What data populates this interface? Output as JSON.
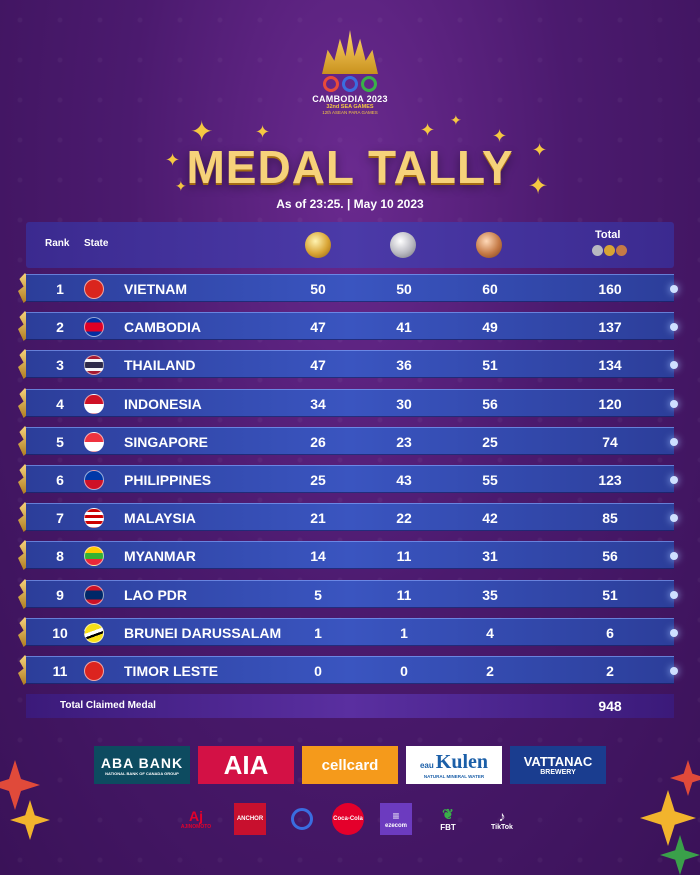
{
  "logo": {
    "title": "CAMBODIA 2023",
    "subtitle": "32nd SEA GAMES",
    "subtitle2": "12th ASEAN PARA GAMES"
  },
  "title": "MEDAL TALLY",
  "as_of": "As of 23:25. | May 10 2023",
  "headers": {
    "rank": "Rank",
    "state": "State",
    "total": "Total"
  },
  "rows": [
    {
      "rank": "1",
      "state": "VIETNAM",
      "gold": "50",
      "silver": "50",
      "bronze": "60",
      "total": "160"
    },
    {
      "rank": "2",
      "state": "CAMBODIA",
      "gold": "47",
      "silver": "41",
      "bronze": "49",
      "total": "137"
    },
    {
      "rank": "3",
      "state": "THAILAND",
      "gold": "47",
      "silver": "36",
      "bronze": "51",
      "total": "134"
    },
    {
      "rank": "4",
      "state": "INDONESIA",
      "gold": "34",
      "silver": "30",
      "bronze": "56",
      "total": "120"
    },
    {
      "rank": "5",
      "state": "SINGAPORE",
      "gold": "26",
      "silver": "23",
      "bronze": "25",
      "total": "74"
    },
    {
      "rank": "6",
      "state": "PHILIPPINES",
      "gold": "25",
      "silver": "43",
      "bronze": "55",
      "total": "123"
    },
    {
      "rank": "7",
      "state": "MALAYSIA",
      "gold": "21",
      "silver": "22",
      "bronze": "42",
      "total": "85"
    },
    {
      "rank": "8",
      "state": "MYANMAR",
      "gold": "14",
      "silver": "11",
      "bronze": "31",
      "total": "56"
    },
    {
      "rank": "9",
      "state": "LAO PDR",
      "gold": "5",
      "silver": "11",
      "bronze": "35",
      "total": "51"
    },
    {
      "rank": "10",
      "state": "BRUNEI DARUSSALAM",
      "gold": "1",
      "silver": "1",
      "bronze": "4",
      "total": "6"
    },
    {
      "rank": "11",
      "state": "TIMOR LESTE",
      "gold": "0",
      "silver": "0",
      "bronze": "2",
      "total": "2"
    }
  ],
  "total_claimed": {
    "label": "Total Claimed Medal",
    "value": "948"
  },
  "sponsors": {
    "aba": "ABA BANK",
    "aba_sub": "NATIONAL BANK OF CANADA GROUP",
    "aia": "AIA",
    "cellcard": "cellcard",
    "kulen": "Kulen",
    "kulen_prefix": "eau",
    "kulen_sub": "NATURAL MINERAL WATER",
    "vattanac": "VATTANAC",
    "vattanac_sub": "BREWERY"
  },
  "small_sponsors": {
    "ajinomoto": "AJINOMOTO",
    "anchor": "ANCHOR",
    "coca": "Coca-Cola",
    "ezecom": "ezecom",
    "fbt": "FBT",
    "tiktok": "TikTok"
  }
}
